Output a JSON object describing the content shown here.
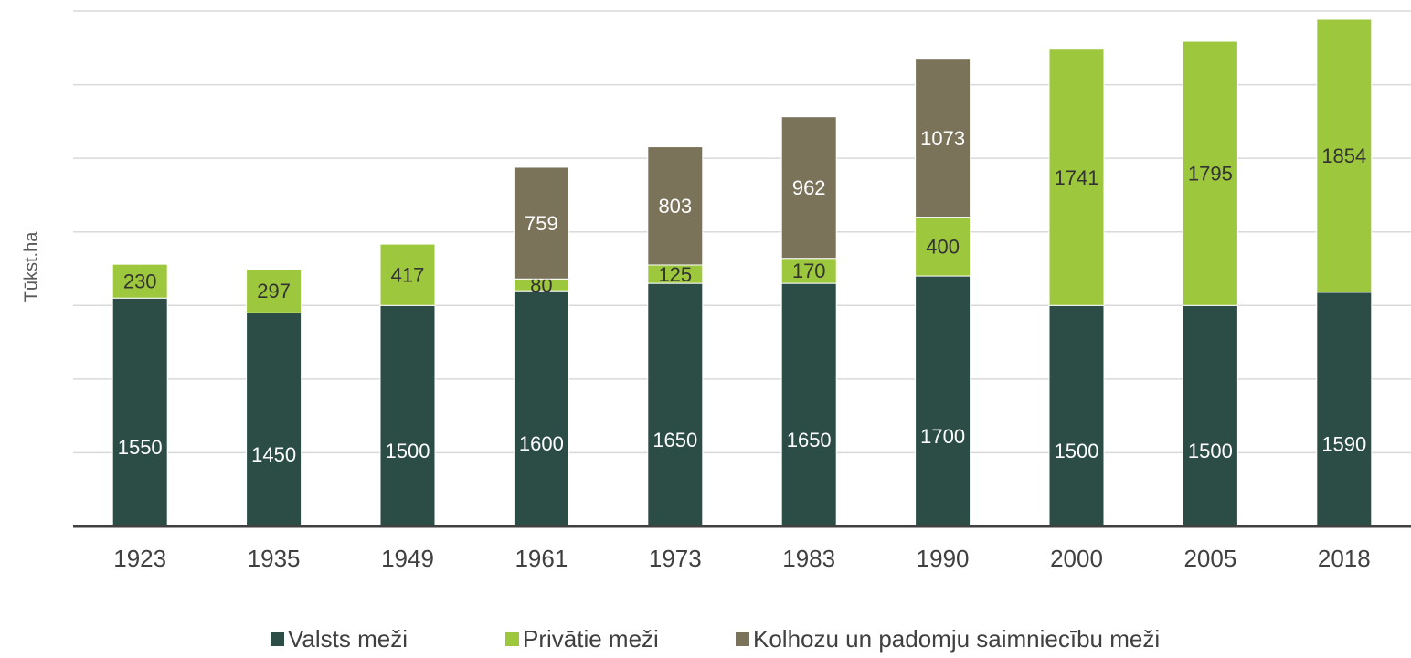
{
  "chart_data": {
    "type": "stacked_bar",
    "y_label": "Tūkst.ha",
    "categories": [
      "1923",
      "1935",
      "1949",
      "1961",
      "1973",
      "1983",
      "1990",
      "2000",
      "2005",
      "2018"
    ],
    "series": [
      {
        "name": "Valsts meži",
        "color": "#2b4d45",
        "values": [
          1550,
          1450,
          1500,
          1600,
          1650,
          1650,
          1700,
          1500,
          1500,
          1590
        ]
      },
      {
        "name": "Privātie meži",
        "color": "#9dc73c",
        "values": [
          230,
          297,
          417,
          80,
          125,
          170,
          400,
          1741,
          1795,
          1854
        ]
      },
      {
        "name": "Kolhozu un padomju saimniecību meži",
        "color": "#7a735a",
        "values": [
          null,
          null,
          null,
          759,
          803,
          962,
          1073,
          null,
          null,
          null
        ]
      }
    ],
    "ylim": [
      0,
      3500
    ],
    "yticks": [
      0,
      500,
      1000,
      1500,
      2000,
      2500,
      3000,
      3500
    ],
    "grid": true
  }
}
